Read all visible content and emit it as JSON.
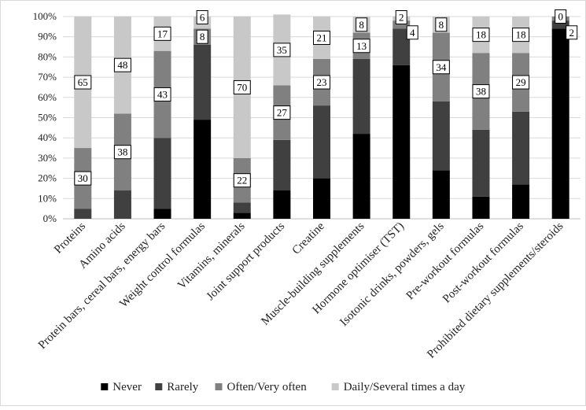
{
  "chart_data": {
    "type": "bar",
    "stacked": true,
    "percent_scale": true,
    "title": "",
    "xlabel": "",
    "ylabel": "",
    "ylim": [
      0,
      100
    ],
    "yticks": [
      "0%",
      "10%",
      "20%",
      "30%",
      "40%",
      "50%",
      "60%",
      "70%",
      "80%",
      "90%",
      "100%"
    ],
    "grid": true,
    "legend_position": "bottom",
    "categories": [
      "Proteins",
      "Amino acids",
      "Protein bars, cereal bars, energy bars",
      "Weight control formulas",
      "Vitamins, minerals",
      "Joint support products",
      "Creatine",
      "Muscle-building supplements",
      "Hormone optimiser (TST)",
      "Isotonic drinks, powders, gels",
      "Pre-workout formulas",
      "Post-workout formulas",
      "Prohibited dietary supplements/steroids"
    ],
    "series": [
      {
        "name": "Never",
        "color": "#000000",
        "values": [
          0,
          0,
          5,
          49,
          3,
          14,
          20,
          42,
          76,
          24,
          11,
          17,
          94
        ]
      },
      {
        "name": "Rarely",
        "color": "#404040",
        "values": [
          5,
          14,
          35,
          37,
          5,
          25,
          36,
          37,
          18,
          34,
          33,
          36,
          4
        ]
      },
      {
        "name": "Often/Very often",
        "color": "#808080",
        "values": [
          30,
          38,
          43,
          8,
          22,
          27,
          23,
          13,
          4,
          34,
          38,
          29,
          2
        ]
      },
      {
        "name": "Daily/Several times a day",
        "color": "#c8c8c8",
        "values": [
          65,
          48,
          17,
          6,
          70,
          35,
          21,
          8,
          2,
          8,
          18,
          18,
          0
        ]
      }
    ],
    "data_labels": [
      {
        "category_index": 0,
        "series_index": 3,
        "text": "65"
      },
      {
        "category_index": 0,
        "series_index": 2,
        "text": "30"
      },
      {
        "category_index": 1,
        "series_index": 3,
        "text": "48"
      },
      {
        "category_index": 1,
        "series_index": 2,
        "text": "38"
      },
      {
        "category_index": 2,
        "series_index": 3,
        "text": "17"
      },
      {
        "category_index": 2,
        "series_index": 2,
        "text": "43"
      },
      {
        "category_index": 3,
        "series_index": 3,
        "text": "6"
      },
      {
        "category_index": 3,
        "series_index": 2,
        "text": "8"
      },
      {
        "category_index": 4,
        "series_index": 3,
        "text": "70"
      },
      {
        "category_index": 4,
        "series_index": 2,
        "text": "22"
      },
      {
        "category_index": 5,
        "series_index": 3,
        "text": "35"
      },
      {
        "category_index": 5,
        "series_index": 2,
        "text": "27"
      },
      {
        "category_index": 6,
        "series_index": 3,
        "text": "21"
      },
      {
        "category_index": 6,
        "series_index": 2,
        "text": "23"
      },
      {
        "category_index": 7,
        "series_index": 3,
        "text": "8"
      },
      {
        "category_index": 7,
        "series_index": 2,
        "text": "13"
      },
      {
        "category_index": 8,
        "series_index": 3,
        "text": "2"
      },
      {
        "category_index": 8,
        "series_index": 2,
        "text": "4"
      },
      {
        "category_index": 9,
        "series_index": 3,
        "text": "8"
      },
      {
        "category_index": 9,
        "series_index": 2,
        "text": "34"
      },
      {
        "category_index": 10,
        "series_index": 3,
        "text": "18"
      },
      {
        "category_index": 10,
        "series_index": 2,
        "text": "38"
      },
      {
        "category_index": 11,
        "series_index": 3,
        "text": "18"
      },
      {
        "category_index": 11,
        "series_index": 2,
        "text": "29"
      },
      {
        "category_index": 12,
        "series_index": 3,
        "text": "0"
      },
      {
        "category_index": 12,
        "series_index": 2,
        "text": "2"
      }
    ]
  }
}
